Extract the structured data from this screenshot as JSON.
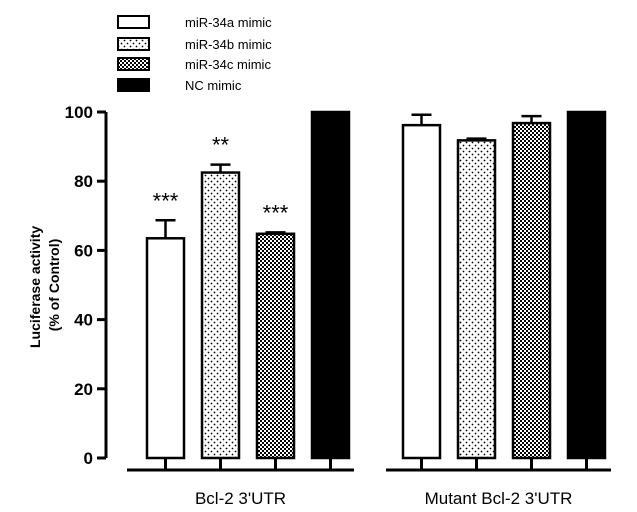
{
  "chart_data": {
    "type": "bar",
    "title": "",
    "ylabel_line1": "Luciferase activity",
    "ylabel_line2": "(% of Control)",
    "xlabel": "",
    "ylim": [
      0,
      100
    ],
    "yticks": [
      "0",
      "20",
      "40",
      "60",
      "80",
      "100"
    ],
    "categories": [
      "Bcl-2 3'UTR",
      "Mutant Bcl-2 3'UTR"
    ],
    "series": [
      {
        "name": "miR-34a mimic",
        "pattern": "white",
        "values": [
          63.5,
          96.2
        ],
        "errors": [
          5.2,
          3.0
        ],
        "significance": [
          "***",
          ""
        ]
      },
      {
        "name": "miR-34b mimic",
        "pattern": "dots",
        "values": [
          82.5,
          91.8
        ],
        "errors": [
          2.3,
          0.5
        ],
        "significance": [
          "**",
          ""
        ]
      },
      {
        "name": "miR-34c mimic",
        "pattern": "checker",
        "values": [
          64.8,
          96.8
        ],
        "errors": [
          0.4,
          2.0
        ],
        "significance": [
          "***",
          ""
        ]
      },
      {
        "name": "NC mimic",
        "pattern": "black",
        "values": [
          100,
          100
        ],
        "errors": [
          0,
          0
        ],
        "significance": [
          "",
          ""
        ]
      }
    ],
    "grid": false,
    "legend_position": "top-left"
  }
}
